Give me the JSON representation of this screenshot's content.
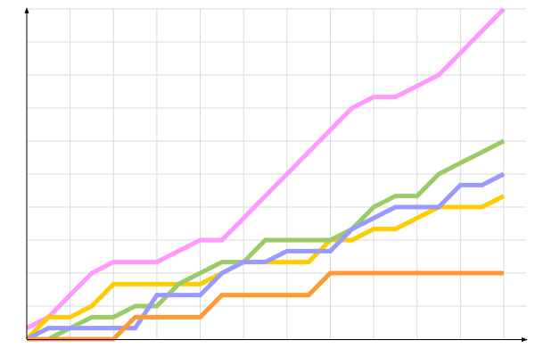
{
  "chart_data": {
    "type": "line",
    "title": "",
    "xlabel": "",
    "ylabel": "",
    "x": [
      0,
      1,
      2,
      3,
      4,
      5,
      6,
      7,
      8,
      9,
      10,
      11,
      12,
      13,
      14,
      15,
      16,
      17,
      18,
      19,
      20,
      21,
      22
    ],
    "xlim": [
      0,
      22
    ],
    "ylim": [
      0,
      30
    ],
    "grid": true,
    "x_grid_step": 2,
    "y_grid_step": 3,
    "series": [
      {
        "color": "#ff99ff",
        "values": [
          1,
          2,
          4,
          6,
          7,
          7,
          7,
          8,
          9,
          9,
          11,
          13,
          15,
          17,
          19,
          21,
          22,
          22,
          23,
          24,
          26,
          28,
          30
        ]
      },
      {
        "color": "#ffcc00",
        "values": [
          0,
          2,
          2,
          3,
          5,
          5,
          5,
          5,
          5,
          6,
          7,
          7,
          7,
          7,
          9,
          9,
          10,
          10,
          11,
          12,
          12,
          12,
          13
        ]
      },
      {
        "color": "#99cc66",
        "values": [
          0,
          0,
          1,
          2,
          2,
          3,
          3,
          5,
          6,
          7,
          7,
          9,
          9,
          9,
          9,
          10,
          12,
          13,
          13,
          15,
          16,
          17,
          18
        ]
      },
      {
        "color": "#9999ff",
        "values": [
          0,
          1,
          1,
          1,
          1,
          1,
          4,
          4,
          4,
          6,
          7,
          7,
          8,
          8,
          8,
          10,
          11,
          12,
          12,
          12,
          14,
          14,
          15
        ]
      },
      {
        "color": "#ff9933",
        "values": [
          0,
          0,
          0,
          0,
          0,
          2,
          2,
          2,
          2,
          4,
          4,
          4,
          4,
          4,
          6,
          6,
          6,
          6,
          6,
          6,
          6,
          6,
          6
        ]
      }
    ]
  }
}
